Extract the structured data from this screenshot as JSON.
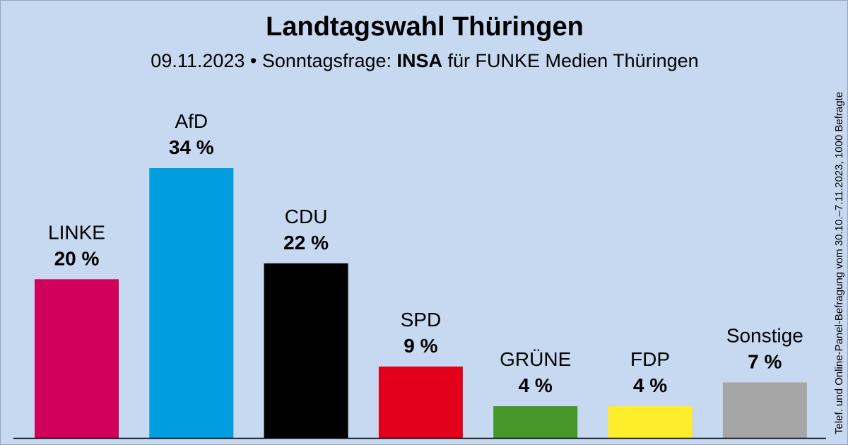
{
  "header": {
    "title": "Landtagswahl Thüringen",
    "subtitle_date": "09.11.2023 • Sonntagsfrage: ",
    "subtitle_institute": "INSA",
    "subtitle_client": " für FUNKE Medien Thüringen"
  },
  "source_note": "Telef. und Online-Panel-Befragung vom 30.10.–7.11.2023, 1000 Befragte",
  "chart_data": {
    "type": "bar",
    "title": "Landtagswahl Thüringen",
    "categories": [
      "LINKE",
      "AfD",
      "CDU",
      "SPD",
      "GRÜNE",
      "FDP",
      "Sonstige"
    ],
    "values": [
      20,
      34,
      22,
      9,
      4,
      4,
      7
    ],
    "value_labels": [
      "20 %",
      "34 %",
      "22 %",
      "9 %",
      "4 %",
      "4 %",
      "7 %"
    ],
    "colors": [
      "#d1005c",
      "#009ee0",
      "#000000",
      "#e3001b",
      "#46962b",
      "#ffed2b",
      "#a6a6a6"
    ],
    "unit": "%",
    "ylim": [
      0,
      34
    ],
    "grid": false,
    "legend": "none"
  }
}
